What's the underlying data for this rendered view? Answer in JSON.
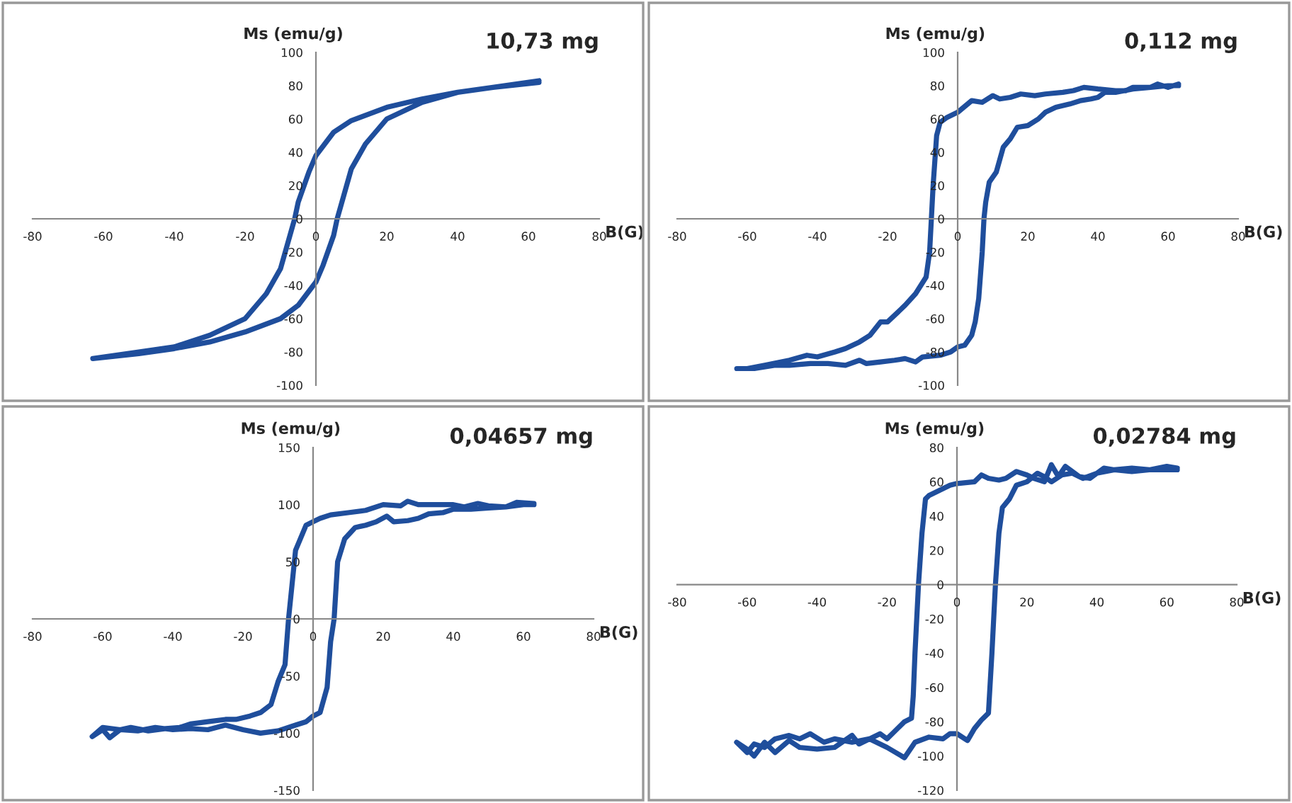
{
  "chart_data": [
    {
      "type": "line",
      "title": "10,73 mg",
      "xlabel": "B(G)",
      "ylabel": "Ms (emu/g)",
      "xlim": [
        -80,
        80
      ],
      "xticks": [
        -80,
        -60,
        -40,
        -20,
        0,
        20,
        40,
        60,
        80
      ],
      "ylim": [
        -100,
        100
      ],
      "yticks": [
        -100,
        -80,
        -60,
        -40,
        -20,
        0,
        20,
        40,
        60,
        80,
        100
      ],
      "grid": false,
      "legend": false,
      "marker": "none",
      "line_style": "solid",
      "series": [
        {
          "color": "#1f4e9c",
          "x": [
            63,
            50,
            40,
            30,
            20,
            10,
            5,
            0,
            -2,
            -5,
            -6,
            -8,
            -10,
            -14,
            -20,
            -30,
            -40,
            -50,
            -63,
            -50,
            -40,
            -30,
            -20,
            -10,
            -5,
            0,
            2,
            5,
            6,
            8,
            10,
            14,
            20,
            30,
            40,
            50,
            63
          ],
          "values": [
            83,
            79,
            76,
            72,
            67,
            59,
            52,
            38,
            28,
            10,
            0,
            -15,
            -30,
            -45,
            -60,
            -70,
            -77,
            -80,
            -84,
            -81,
            -78,
            -74,
            -68,
            -60,
            -52,
            -38,
            -28,
            -10,
            0,
            15,
            30,
            45,
            60,
            70,
            76,
            79,
            82
          ]
        }
      ]
    },
    {
      "type": "line",
      "title": "0,112 mg",
      "xlabel": "B(G)",
      "ylabel": "Ms (emu/g)",
      "xlim": [
        -80,
        80
      ],
      "xticks": [
        -80,
        -60,
        -40,
        -20,
        0,
        20,
        40,
        60,
        80
      ],
      "ylim": [
        -100,
        100
      ],
      "yticks": [
        -100,
        -80,
        -60,
        -40,
        -20,
        0,
        20,
        40,
        60,
        80,
        100
      ],
      "grid": false,
      "legend": false,
      "marker": "none",
      "line_style": "solid",
      "series": [
        {
          "color": "#1f4e9c",
          "x": [
            63,
            60,
            57,
            55,
            50,
            48,
            45,
            40,
            36,
            33,
            30,
            25,
            22,
            18,
            15,
            12,
            10,
            7,
            4,
            0,
            -3,
            -5,
            -6,
            -7,
            -7.5,
            -8,
            -9,
            -12,
            -15,
            -20,
            -22,
            -25,
            -28,
            -32,
            -35,
            -40,
            -43,
            -48,
            -55,
            -60,
            -63,
            -58,
            -52,
            -48,
            -42,
            -37,
            -32,
            -28,
            -26,
            -22,
            -18,
            -15,
            -12,
            -10,
            -5,
            -2,
            0,
            2,
            4,
            5,
            6,
            7,
            7.5,
            8,
            9,
            11,
            13,
            15,
            17,
            20,
            23,
            25,
            28,
            32,
            35,
            38,
            40,
            42,
            45,
            50,
            55,
            60,
            63
          ],
          "values": [
            81,
            79,
            81,
            79,
            79,
            77,
            77,
            78,
            79,
            77,
            76,
            75,
            74,
            75,
            73,
            72,
            74,
            70,
            71,
            64,
            61,
            58,
            50,
            20,
            0,
            -20,
            -35,
            -45,
            -52,
            -62,
            -62,
            -70,
            -74,
            -78,
            -80,
            -83,
            -82,
            -85,
            -88,
            -90,
            -90,
            -90,
            -88,
            -88,
            -87,
            -87,
            -88,
            -85,
            -87,
            -86,
            -85,
            -84,
            -86,
            -83,
            -82,
            -80,
            -77,
            -76,
            -70,
            -62,
            -48,
            -20,
            0,
            10,
            22,
            28,
            43,
            48,
            55,
            56,
            60,
            64,
            67,
            69,
            71,
            72,
            73,
            76,
            76,
            78,
            79,
            80,
            80
          ]
        }
      ]
    },
    {
      "type": "line",
      "title": "0,04657 mg",
      "xlabel": "B(G)",
      "ylabel": "Ms (emu/g)",
      "xlim": [
        -80,
        80
      ],
      "xticks": [
        -80,
        -60,
        -40,
        -20,
        0,
        20,
        40,
        60,
        80
      ],
      "ylim": [
        -150,
        150
      ],
      "yticks": [
        -150,
        -100,
        -50,
        0,
        50,
        100,
        150
      ],
      "grid": false,
      "legend": false,
      "marker": "none",
      "line_style": "solid",
      "series": [
        {
          "color": "#1f4e9c",
          "x": [
            63,
            58,
            55,
            50,
            47,
            43,
            40,
            35,
            30,
            27,
            25,
            20,
            15,
            10,
            5,
            2,
            0,
            -2,
            -5,
            -6,
            -7,
            -8,
            -10,
            -12,
            -15,
            -18,
            -22,
            -25,
            -30,
            -35,
            -38,
            -42,
            -47,
            -52,
            -55,
            -60,
            -63,
            -60,
            -58,
            -55,
            -50,
            -45,
            -40,
            -35,
            -30,
            -25,
            -20,
            -15,
            -10,
            -5,
            -2,
            0,
            2,
            4,
            5,
            6,
            7,
            9,
            12,
            15,
            18,
            21,
            23,
            27,
            30,
            33,
            37,
            40,
            45,
            50,
            55,
            60,
            63
          ],
          "values": [
            101,
            102,
            98,
            99,
            101,
            98,
            100,
            100,
            100,
            103,
            99,
            100,
            95,
            93,
            91,
            88,
            85,
            82,
            60,
            30,
            0,
            -40,
            -55,
            -75,
            -82,
            -85,
            -88,
            -88,
            -90,
            -92,
            -95,
            -96,
            -98,
            -95,
            -97,
            -95,
            -103,
            -97,
            -104,
            -97,
            -98,
            -95,
            -97,
            -96,
            -97,
            -93,
            -97,
            -100,
            -98,
            -93,
            -90,
            -85,
            -82,
            -60,
            -20,
            0,
            50,
            70,
            80,
            82,
            85,
            90,
            85,
            86,
            88,
            92,
            93,
            96,
            96,
            97,
            98,
            100,
            100
          ]
        }
      ]
    },
    {
      "type": "line",
      "title": "0,02784 mg",
      "xlabel": "B(G)",
      "ylabel": "Ms (emu/g)",
      "xlim": [
        -80,
        80
      ],
      "xticks": [
        -80,
        -60,
        -40,
        -20,
        0,
        20,
        40,
        60,
        80
      ],
      "ylim": [
        -120,
        80
      ],
      "yticks": [
        -120,
        -100,
        -80,
        -60,
        -40,
        -20,
        0,
        20,
        40,
        60,
        80
      ],
      "grid": false,
      "legend": false,
      "marker": "none",
      "line_style": "solid",
      "series": [
        {
          "color": "#1f4e9c",
          "x": [
            63,
            60,
            55,
            50,
            45,
            42,
            38,
            35,
            31,
            29,
            27,
            25,
            22,
            20,
            17,
            14,
            12,
            9,
            7,
            5,
            0,
            -2,
            -5,
            -8,
            -9,
            -10,
            -11,
            -12,
            -12.5,
            -13,
            -15,
            -18,
            -20,
            -22,
            -25,
            -30,
            -35,
            -38,
            -42,
            -45,
            -48,
            -52,
            -55,
            -58,
            -60,
            -63,
            -60,
            -58,
            -55,
            -52,
            -48,
            -45,
            -40,
            -35,
            -30,
            -28,
            -25,
            -20,
            -15,
            -12,
            -8,
            -4,
            -2,
            0,
            3,
            5,
            7,
            9,
            10,
            11,
            12,
            13,
            15,
            17,
            20,
            23,
            25,
            27,
            30,
            33,
            36,
            40,
            45,
            50,
            55,
            60,
            63
          ],
          "values": [
            68,
            69,
            67,
            68,
            67,
            68,
            62,
            63,
            69,
            63,
            70,
            60,
            62,
            64,
            66,
            62,
            61,
            62,
            64,
            60,
            59,
            58,
            55,
            52,
            50,
            30,
            0,
            -40,
            -65,
            -78,
            -80,
            -86,
            -90,
            -87,
            -90,
            -92,
            -90,
            -92,
            -87,
            -90,
            -88,
            -90,
            -95,
            -93,
            -98,
            -92,
            -96,
            -100,
            -92,
            -98,
            -91,
            -95,
            -96,
            -95,
            -88,
            -93,
            -90,
            -95,
            -101,
            -92,
            -89,
            -90,
            -87,
            -87,
            -91,
            -84,
            -79,
            -75,
            -40,
            0,
            30,
            45,
            50,
            58,
            60,
            65,
            63,
            60,
            64,
            65,
            62,
            65,
            67,
            66,
            67,
            67,
            67
          ]
        }
      ]
    }
  ]
}
